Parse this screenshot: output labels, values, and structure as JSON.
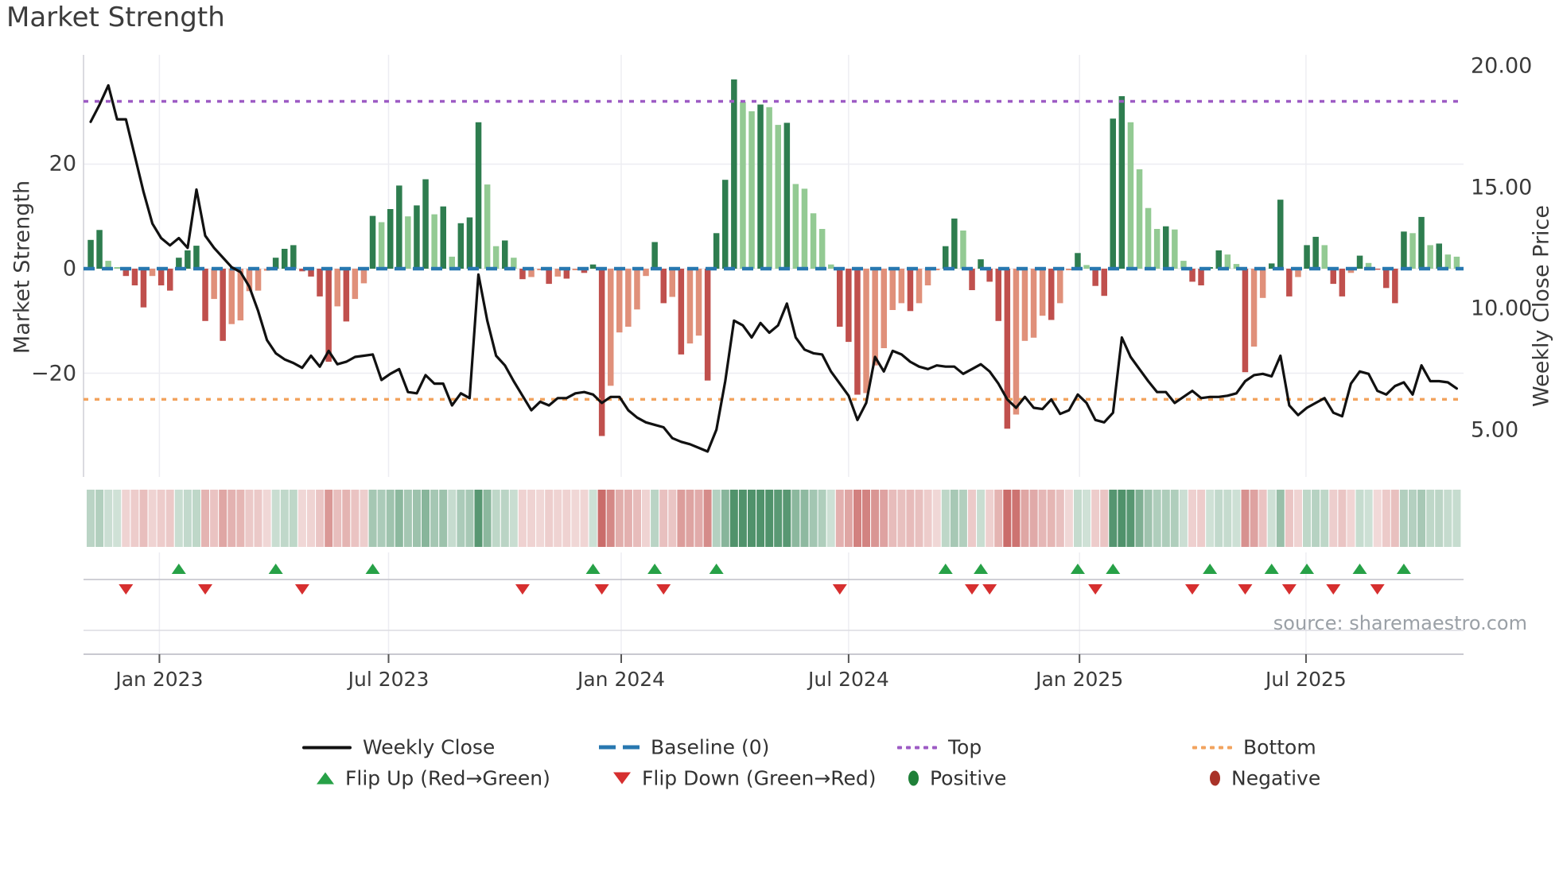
{
  "title": "Market Strength",
  "source": "source: sharemaestro.com",
  "axes": {
    "left": {
      "label": "Market Strength",
      "ticks": [
        "20",
        "0",
        "−20"
      ],
      "tick_values": [
        20,
        0,
        -20
      ]
    },
    "right": {
      "label": "Weekly Close Price",
      "ticks": [
        "20.00",
        "15.00",
        "10.00",
        "5.00"
      ],
      "tick_values": [
        20,
        15,
        10,
        5
      ]
    },
    "x": {
      "ticks": [
        "Jan 2023",
        "Jul 2023",
        "Jan 2024",
        "Jul 2024",
        "Jan 2025",
        "Jul 2025"
      ]
    }
  },
  "legend": {
    "weekly_close": "Weekly Close",
    "baseline": "Baseline (0)",
    "top": "Top",
    "bottom": "Bottom",
    "flip_up": "Flip Up (Red→Green)",
    "flip_down": "Flip Down (Green→Red)",
    "positive": "Positive",
    "negative": "Negative"
  },
  "colors": {
    "positive_dark": "#2e7d4f",
    "positive_light": "#93ca93",
    "negative_dark": "#c0504d",
    "negative_light": "#e0907a",
    "baseline": "#2878b0",
    "top": "#9d5bc4",
    "bottom": "#f2a35e",
    "price_line": "#111111",
    "flip_up": "#27a147",
    "flip_down": "#d62f2f",
    "positive_marker": "#1f8038",
    "negative_marker": "#a93228",
    "grid": "#ededf2",
    "spine": "#cfcfd6",
    "panel_line": "#c9c9d0",
    "panel_line_light": "#dcdce2",
    "text": "#3a3a3a",
    "muted": "#9aa0a6"
  },
  "chart_data": {
    "type": "bar+line",
    "frequency": "weekly",
    "weeks": 156,
    "title": "Market Strength",
    "ylabel_left": "Market Strength",
    "ylabel_right": "Weekly Close Price",
    "ylim_left": [
      -40,
      41
    ],
    "ylim_right_ticks": [
      20,
      15,
      10,
      5
    ],
    "grid": true,
    "legend_position": "bottom",
    "baseline": 0,
    "top_line": 32,
    "bottom_line": -25,
    "x_tick_weeks": [
      7.8,
      33.8,
      60.2,
      86.0,
      112.2,
      137.9
    ],
    "strength_bars": [
      5.5,
      7.4,
      1.5,
      0.3,
      -1.4,
      -3.2,
      -7.4,
      -1.4,
      -3.2,
      -4.2,
      2.1,
      3.5,
      4.4,
      -10,
      -5.8,
      -13.8,
      -10.6,
      -9.9,
      -4.3,
      -4.2,
      -0.4,
      2.1,
      3.8,
      4.5,
      -0.5,
      -1.5,
      -5.3,
      -17.8,
      -7.2,
      -10.1,
      -5.8,
      -2.8,
      10.1,
      8.9,
      11.4,
      15.9,
      10,
      12.1,
      17.1,
      10.4,
      11.9,
      2.3,
      8.7,
      9.8,
      28,
      16.1,
      4.3,
      5.4,
      2.1,
      -2,
      -1.6,
      -0.3,
      -2.9,
      -1.5,
      -1.9,
      -0.3,
      -0.8,
      0.8,
      -32,
      -22.4,
      -12.2,
      -11.1,
      -7.8,
      -1.4,
      5.1,
      -6.6,
      -5.4,
      -16.4,
      -14.3,
      -12.8,
      -21.4,
      6.8,
      17,
      36.2,
      31.9,
      30.1,
      31.4,
      30.9,
      27.5,
      27.9,
      16.2,
      15.3,
      10.6,
      7.6,
      0.8,
      -11.1,
      -14,
      -24.1,
      -23.8,
      -18.5,
      -15.2,
      -7.9,
      -6.6,
      -8.1,
      -6.6,
      -3.2,
      -0.3,
      4.3,
      9.6,
      7.3,
      -4.1,
      1.8,
      -2.5,
      -10,
      -30.6,
      -27.9,
      -13.8,
      -13.2,
      -9,
      -9.8,
      -6.6,
      -0.3,
      3,
      0.7,
      -3.3,
      -5.2,
      28.7,
      33,
      28,
      19,
      11.6,
      7.6,
      8.1,
      7.5,
      1.5,
      -2.5,
      -3.2,
      0.3,
      3.5,
      2.7,
      0.9,
      -19.8,
      -14.9,
      -5.6,
      1,
      13.2,
      -5.3,
      -1.6,
      4.5,
      6.1,
      4.5,
      -2.9,
      -5.3,
      -0.8,
      2.5,
      1.1,
      -0.2,
      -3.7,
      -6.6,
      7.1,
      6.8,
      9.9,
      4.5,
      4.8,
      2.7,
      2.3
    ],
    "weekly_close": [
      17.7,
      18.4,
      19.2,
      17.8,
      17.8,
      16.3,
      14.8,
      13.5,
      12.9,
      12.6,
      12.9,
      12.5,
      14.9,
      13.0,
      12.5,
      12.1,
      11.7,
      11.5,
      10.9,
      9.9,
      8.7,
      8.15,
      7.9,
      7.75,
      7.55,
      8.05,
      7.6,
      8.25,
      7.7,
      7.8,
      8.0,
      8.05,
      8.1,
      7.05,
      7.3,
      7.5,
      6.55,
      6.5,
      7.25,
      6.9,
      6.9,
      6.0,
      6.5,
      6.3,
      11.4,
      9.5,
      8.05,
      7.65,
      7.0,
      6.4,
      5.8,
      6.15,
      6.0,
      6.3,
      6.3,
      6.5,
      6.55,
      6.45,
      6.1,
      6.35,
      6.35,
      5.8,
      5.5,
      5.3,
      5.2,
      5.1,
      4.65,
      4.5,
      4.4,
      4.25,
      4.1,
      5.0,
      7.0,
      9.5,
      9.3,
      8.8,
      9.4,
      9.0,
      9.3,
      10.2,
      8.8,
      8.3,
      8.15,
      8.1,
      7.4,
      6.9,
      6.4,
      5.4,
      6.1,
      8.0,
      7.4,
      8.25,
      8.1,
      7.8,
      7.6,
      7.5,
      7.65,
      7.6,
      7.6,
      7.3,
      7.5,
      7.7,
      7.4,
      6.9,
      6.25,
      5.9,
      6.35,
      5.9,
      5.85,
      6.25,
      5.65,
      5.8,
      6.45,
      6.1,
      5.4,
      5.3,
      5.7,
      8.8,
      8.0,
      7.5,
      7.0,
      6.55,
      6.55,
      6.1,
      6.35,
      6.6,
      6.3,
      6.35,
      6.35,
      6.4,
      6.5,
      7.0,
      7.25,
      7.3,
      7.2,
      8.05,
      6.0,
      5.6,
      5.9,
      6.1,
      6.3,
      5.7,
      5.55,
      6.9,
      7.4,
      7.3,
      6.6,
      6.45,
      6.8,
      6.95,
      6.45,
      7.65,
      7.0,
      7.0,
      6.95,
      6.7
    ],
    "flip_up_weeks": [
      10,
      21,
      32,
      57,
      64,
      71,
      97,
      101,
      112,
      116,
      127,
      134,
      138,
      144,
      149
    ],
    "flip_down_weeks": [
      4,
      13,
      24,
      49,
      58,
      65,
      85,
      100,
      102,
      114,
      125,
      131,
      136,
      141,
      146
    ]
  }
}
